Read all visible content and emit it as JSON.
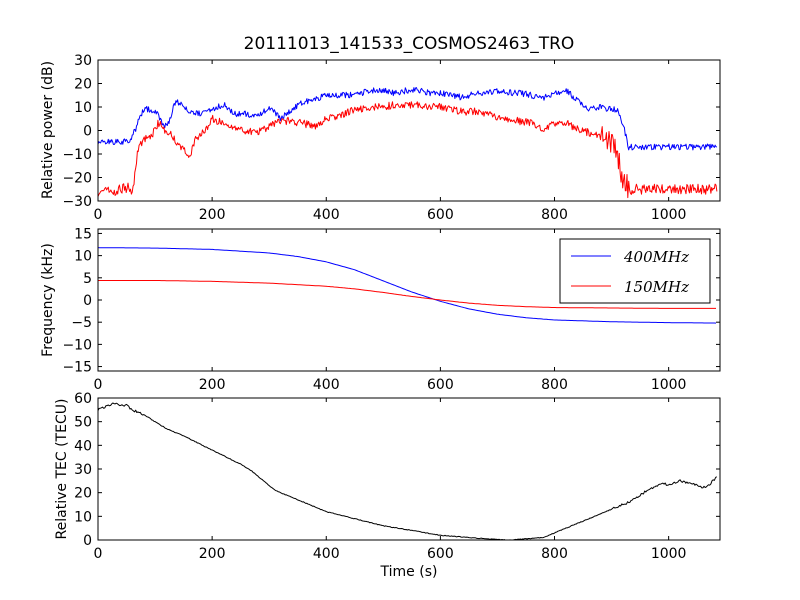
{
  "figure_title": "20111013_141533_COSMOS2463_TRO",
  "colors": {
    "blue": "#0000ff",
    "red": "#ff0000",
    "black": "#000000"
  },
  "chart_data": [
    {
      "type": "line",
      "title": "20111013_141533_COSMOS2463_TRO",
      "xlabel": "",
      "ylabel": "Relative power (dB)",
      "xlim": [
        0,
        1090
      ],
      "ylim": [
        -30,
        30
      ],
      "xticks": [
        0,
        200,
        400,
        600,
        800,
        1000
      ],
      "yticks": [
        -30,
        -20,
        -10,
        0,
        10,
        20,
        30
      ],
      "grid": false,
      "series": [
        {
          "color": "#0000ff",
          "x": [
            0,
            20,
            40,
            55,
            65,
            75,
            85,
            100,
            110,
            115,
            125,
            135,
            145,
            155,
            165,
            180,
            200,
            220,
            240,
            260,
            280,
            300,
            320,
            340,
            360,
            380,
            400,
            420,
            440,
            460,
            480,
            500,
            520,
            540,
            560,
            580,
            600,
            620,
            640,
            660,
            680,
            700,
            720,
            740,
            760,
            780,
            800,
            820,
            840,
            860,
            880,
            900,
            910,
            920,
            930,
            950,
            1000,
            1050,
            1085
          ],
          "y": [
            -5,
            -5,
            -5,
            -4,
            0,
            7,
            9,
            8,
            5,
            2,
            4,
            12,
            12,
            9,
            8,
            7,
            9,
            11,
            7,
            7,
            6,
            10,
            5,
            9,
            12,
            13,
            15,
            15,
            15,
            16,
            17,
            17,
            16,
            17,
            17,
            16,
            16,
            15,
            14,
            16,
            16,
            17,
            16,
            16,
            15,
            14,
            16,
            17,
            13,
            9,
            10,
            9,
            9,
            3,
            -7,
            -7,
            -7,
            -7,
            -7
          ]
        },
        {
          "color": "#ff0000",
          "x": [
            0,
            20,
            40,
            55,
            60,
            70,
            80,
            90,
            100,
            105,
            110,
            120,
            130,
            140,
            150,
            160,
            170,
            180,
            190,
            200,
            220,
            240,
            260,
            280,
            300,
            320,
            340,
            360,
            380,
            400,
            420,
            440,
            460,
            480,
            500,
            520,
            540,
            560,
            580,
            600,
            620,
            640,
            660,
            680,
            700,
            720,
            740,
            760,
            780,
            800,
            820,
            840,
            860,
            880,
            900,
            910,
            920,
            930,
            950,
            1000,
            1050,
            1085
          ],
          "y": [
            -26,
            -26,
            -25,
            -24,
            -28,
            -8,
            -4,
            -3,
            0,
            3,
            3,
            -1,
            -2,
            -6,
            -8,
            -12,
            -4,
            -2,
            1,
            5,
            3,
            1,
            0,
            -1,
            2,
            4,
            4,
            3,
            2,
            5,
            6,
            8,
            9,
            10,
            10,
            11,
            11,
            11,
            10,
            10,
            9,
            8,
            8,
            7,
            6,
            5,
            4,
            3,
            1,
            3,
            3,
            1,
            -1,
            -2,
            -5,
            -10,
            -22,
            -24,
            -25,
            -25,
            -25,
            -25
          ]
        }
      ]
    },
    {
      "type": "line",
      "title": "",
      "xlabel": "",
      "ylabel": "Frequency (kHz)",
      "xlim": [
        0,
        1090
      ],
      "ylim": [
        -16,
        16
      ],
      "xticks": [
        0,
        200,
        400,
        600,
        800,
        1000
      ],
      "yticks": [
        -15,
        -10,
        -5,
        0,
        5,
        10,
        15
      ],
      "grid": false,
      "legend_position": "top-right",
      "series": [
        {
          "name": "$400MHz$",
          "color": "#0000ff",
          "x": [
            0,
            100,
            200,
            300,
            350,
            400,
            450,
            500,
            550,
            600,
            650,
            700,
            750,
            800,
            900,
            1000,
            1085
          ],
          "y": [
            11.8,
            11.7,
            11.4,
            10.6,
            9.8,
            8.6,
            6.8,
            4.3,
            1.8,
            -0.3,
            -2.0,
            -3.2,
            -4.0,
            -4.5,
            -4.9,
            -5.1,
            -5.2
          ]
        },
        {
          "name": "$150MHz$",
          "color": "#ff0000",
          "x": [
            0,
            100,
            200,
            300,
            400,
            450,
            500,
            550,
            600,
            650,
            700,
            750,
            800,
            900,
            1000,
            1085
          ],
          "y": [
            4.4,
            4.4,
            4.2,
            3.8,
            3.1,
            2.5,
            1.7,
            0.8,
            0.0,
            -0.7,
            -1.2,
            -1.5,
            -1.7,
            -1.8,
            -1.9,
            -1.9
          ]
        }
      ]
    },
    {
      "type": "line",
      "title": "",
      "xlabel": "Time (s)",
      "ylabel": "Relative TEC (TECU)",
      "xlim": [
        0,
        1090
      ],
      "ylim": [
        0,
        60
      ],
      "xticks": [
        0,
        200,
        400,
        600,
        800,
        1000
      ],
      "yticks": [
        0,
        10,
        20,
        30,
        40,
        50,
        60
      ],
      "grid": false,
      "series": [
        {
          "color": "#000000",
          "x": [
            0,
            10,
            20,
            30,
            40,
            50,
            60,
            70,
            80,
            100,
            120,
            150,
            200,
            250,
            270,
            290,
            310,
            330,
            350,
            400,
            450,
            500,
            550,
            600,
            650,
            700,
            720,
            750,
            780,
            800,
            850,
            900,
            920,
            930,
            950,
            970,
            980,
            990,
            1000,
            1020,
            1040,
            1060,
            1070,
            1085
          ],
          "y": [
            55,
            56,
            57,
            58,
            57,
            57,
            55,
            54,
            53,
            50,
            47,
            44,
            38,
            32,
            29,
            25,
            21,
            19,
            17,
            12,
            9,
            6,
            4,
            2,
            1,
            0.2,
            0,
            0.5,
            1,
            3,
            8,
            13,
            15,
            16,
            19,
            22,
            23,
            24,
            23,
            25,
            24,
            22,
            23,
            27
          ]
        }
      ]
    }
  ]
}
